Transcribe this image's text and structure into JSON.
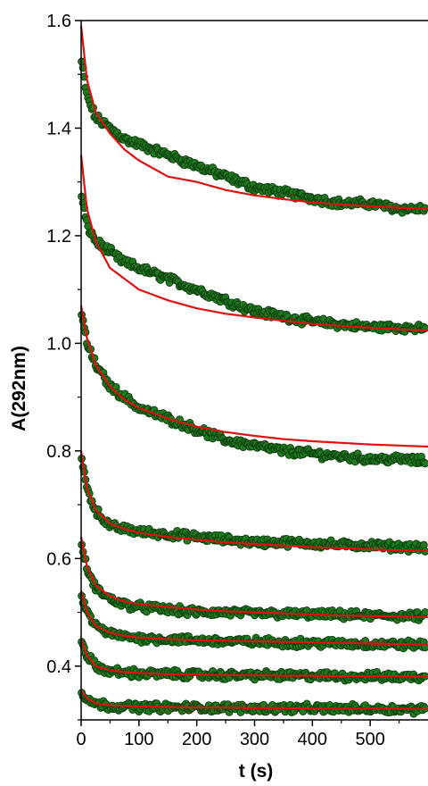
{
  "chart_data": {
    "type": "scatter",
    "title": "",
    "xlabel": "t (s)",
    "ylabel": "A(292nm)",
    "xlim": [
      0,
      600
    ],
    "ylim": [
      0.3,
      1.6
    ],
    "x_ticks": [
      0,
      100,
      200,
      300,
      400,
      500
    ],
    "x_tick_labels": [
      "0",
      "100",
      "200",
      "300",
      "400",
      "500"
    ],
    "y_ticks": [
      0.4,
      0.6,
      0.8,
      1.0,
      1.2,
      1.4,
      1.6
    ],
    "y_tick_labels": [
      "0.4",
      "0.6",
      "0.8",
      "1.0",
      "1.2",
      "1.4",
      "1.6"
    ],
    "grid": false,
    "legend": "none",
    "colors": {
      "data": "#1f7a1f",
      "data_edge": "#0b3d0b",
      "fit": "#e01010"
    },
    "x": [
      0,
      10,
      25,
      50,
      75,
      100,
      150,
      200,
      250,
      300,
      350,
      400,
      450,
      500,
      550,
      600
    ],
    "series": [
      {
        "data": [
          1.53,
          1.46,
          1.42,
          1.4,
          1.38,
          1.37,
          1.35,
          1.33,
          1.31,
          1.29,
          1.28,
          1.27,
          1.26,
          1.26,
          1.25,
          1.25
        ],
        "fit": [
          1.59,
          1.49,
          1.43,
          1.39,
          1.36,
          1.34,
          1.31,
          1.3,
          1.285,
          1.275,
          1.268,
          1.262,
          1.258,
          1.255,
          1.252,
          1.25
        ]
      },
      {
        "data": [
          1.28,
          1.22,
          1.19,
          1.17,
          1.15,
          1.14,
          1.12,
          1.1,
          1.08,
          1.06,
          1.05,
          1.04,
          1.035,
          1.03,
          1.03,
          1.025
        ],
        "fit": [
          1.35,
          1.25,
          1.19,
          1.14,
          1.12,
          1.1,
          1.08,
          1.065,
          1.055,
          1.048,
          1.042,
          1.036,
          1.032,
          1.029,
          1.026,
          1.024
        ]
      },
      {
        "data": [
          1.06,
          1.0,
          0.96,
          0.92,
          0.9,
          0.88,
          0.86,
          0.84,
          0.82,
          0.81,
          0.8,
          0.795,
          0.79,
          0.785,
          0.785,
          0.78
        ],
        "fit": [
          1.07,
          1.01,
          0.96,
          0.92,
          0.895,
          0.88,
          0.86,
          0.845,
          0.835,
          0.828,
          0.822,
          0.818,
          0.815,
          0.812,
          0.81,
          0.808
        ]
      },
      {
        "data": [
          0.79,
          0.73,
          0.69,
          0.66,
          0.655,
          0.65,
          0.645,
          0.64,
          0.635,
          0.63,
          0.63,
          0.628,
          0.625,
          0.625,
          0.622,
          0.62
        ],
        "fit": [
          0.8,
          0.73,
          0.69,
          0.665,
          0.655,
          0.648,
          0.64,
          0.635,
          0.63,
          0.627,
          0.624,
          0.621,
          0.619,
          0.617,
          0.615,
          0.614
        ]
      },
      {
        "data": [
          0.63,
          0.58,
          0.545,
          0.525,
          0.515,
          0.51,
          0.505,
          0.5,
          0.5,
          0.498,
          0.497,
          0.496,
          0.495,
          0.494,
          0.493,
          0.492
        ],
        "fit": [
          0.64,
          0.585,
          0.55,
          0.53,
          0.52,
          0.515,
          0.51,
          0.505,
          0.502,
          0.5,
          0.498,
          0.496,
          0.494,
          0.493,
          0.492,
          0.491
        ]
      },
      {
        "data": [
          0.535,
          0.5,
          0.475,
          0.46,
          0.455,
          0.452,
          0.45,
          0.448,
          0.446,
          0.445,
          0.444,
          0.443,
          0.442,
          0.441,
          0.44,
          0.44
        ],
        "fit": [
          0.54,
          0.5,
          0.475,
          0.462,
          0.456,
          0.453,
          0.45,
          0.448,
          0.447,
          0.446,
          0.445,
          0.444,
          0.443,
          0.442,
          0.441,
          0.44
        ]
      },
      {
        "data": [
          0.45,
          0.42,
          0.4,
          0.39,
          0.388,
          0.386,
          0.385,
          0.384,
          0.383,
          0.383,
          0.382,
          0.382,
          0.381,
          0.381,
          0.38,
          0.38
        ],
        "fit": [
          0.45,
          0.42,
          0.4,
          0.392,
          0.389,
          0.387,
          0.385,
          0.384,
          0.383,
          0.383,
          0.382,
          0.382,
          0.381,
          0.381,
          0.381,
          0.38
        ]
      },
      {
        "data": [
          0.355,
          0.34,
          0.33,
          0.326,
          0.325,
          0.324,
          0.323,
          0.323,
          0.322,
          0.322,
          0.322,
          0.321,
          0.321,
          0.321,
          0.32,
          0.32
        ],
        "fit": [
          0.355,
          0.34,
          0.331,
          0.327,
          0.326,
          0.325,
          0.324,
          0.323,
          0.323,
          0.322,
          0.322,
          0.321,
          0.321,
          0.321,
          0.321,
          0.32
        ]
      }
    ]
  }
}
